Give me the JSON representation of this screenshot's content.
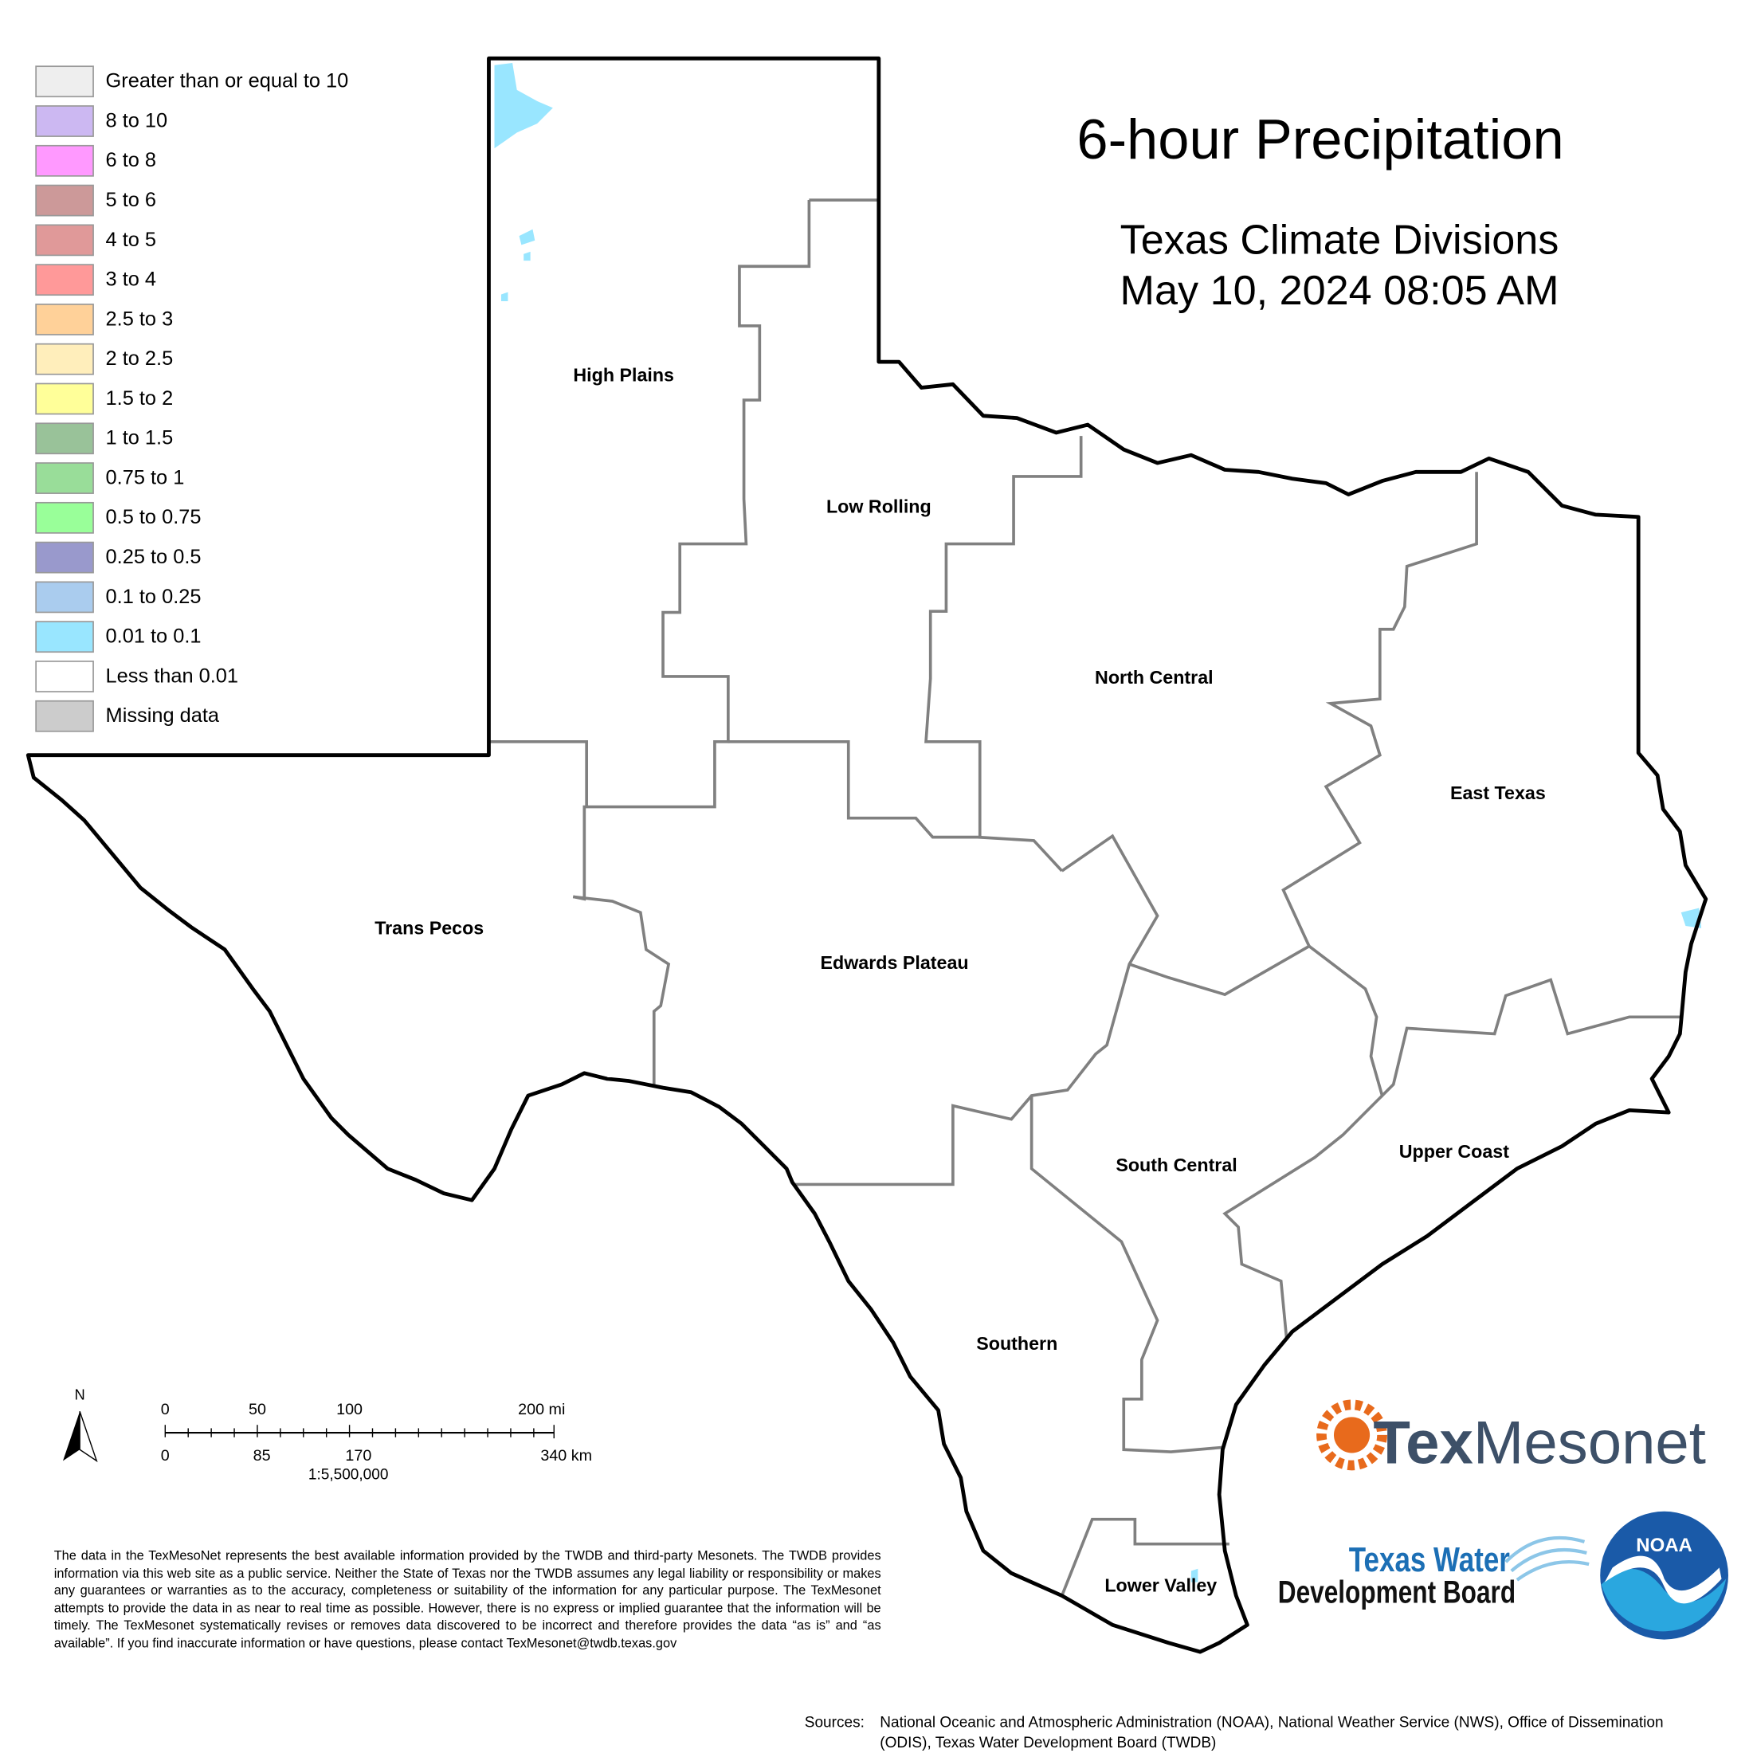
{
  "title": "6-hour Precipitation",
  "subtitle": [
    "Texas Climate Divisions",
    "May 10, 2024 08:05 AM"
  ],
  "legend": [
    {
      "label": "Greater than or equal to 10",
      "color": "#eeeeee"
    },
    {
      "label": "8 to 10",
      "color": "#ccb8f2"
    },
    {
      "label": "6 to 8",
      "color": "#ff99ff"
    },
    {
      "label": "5 to 6",
      "color": "#cc9999"
    },
    {
      "label": "4 to 5",
      "color": "#e09999"
    },
    {
      "label": "3 to 4",
      "color": "#ff9999"
    },
    {
      "label": "2.5 to 3",
      "color": "#ffd199"
    },
    {
      "label": "2 to 2.5",
      "color": "#ffeebb"
    },
    {
      "label": "1.5 to 2",
      "color": "#ffff99"
    },
    {
      "label": "1 to 1.5",
      "color": "#99c299"
    },
    {
      "label": "0.75 to 1",
      "color": "#99dd99"
    },
    {
      "label": "0.5 to 0.75",
      "color": "#99ff99"
    },
    {
      "label": "0.25 to 0.5",
      "color": "#9999cc"
    },
    {
      "label": "0.1 to 0.25",
      "color": "#aaccee"
    },
    {
      "label": "0.01 to 0.1",
      "color": "#99e6ff"
    },
    {
      "label": "Less than 0.01",
      "color": "#ffffff"
    },
    {
      "label": "Missing data",
      "color": "#cccccc"
    }
  ],
  "divisions": [
    "High Plains",
    "Low Rolling",
    "North Central",
    "East Texas",
    "Trans Pecos",
    "Edwards Plateau",
    "South Central",
    "Upper Coast",
    "Southern",
    "Lower Valley"
  ],
  "scale_bar": {
    "north": "N",
    "miles": [
      "0",
      "50",
      "100",
      "200 mi"
    ],
    "km": [
      "0",
      "85",
      "170",
      "340 km"
    ],
    "ratio": "1:5,500,000"
  },
  "disclaimer": "The data in the TexMesoNet represents the best available information provided by the TWDB and third-party Mesonets. The TWDB provides information via this web site as a public service. Neither the State of Texas nor the TWDB assumes any legal liability or responsibility or makes any guarantees or warranties as to the accuracy, completeness or suitability of the information for any particular purpose. The TexMesonet attempts to provide the data in as near to real time as possible. However, there is no express or implied guarantee that the information will be timely. The TexMesonet systematically revises or removes data discovered to be incorrect and therefore provides the data “as is” and “as available”. If you find inaccurate information or have questions, please contact TexMesonet@twdb.texas.gov",
  "sources": {
    "label": "Sources:",
    "text": "National Oceanic and Atmospheric Administration (NOAA), National Weather Service (NWS), Office of Dissemination (ODIS), Texas Water Development Board (TWDB)"
  },
  "logos": {
    "texmesonet": [
      "Tex",
      "Mesonet"
    ],
    "twdb": [
      "Texas Water",
      "Development Board"
    ],
    "noaa": "NOAA"
  }
}
